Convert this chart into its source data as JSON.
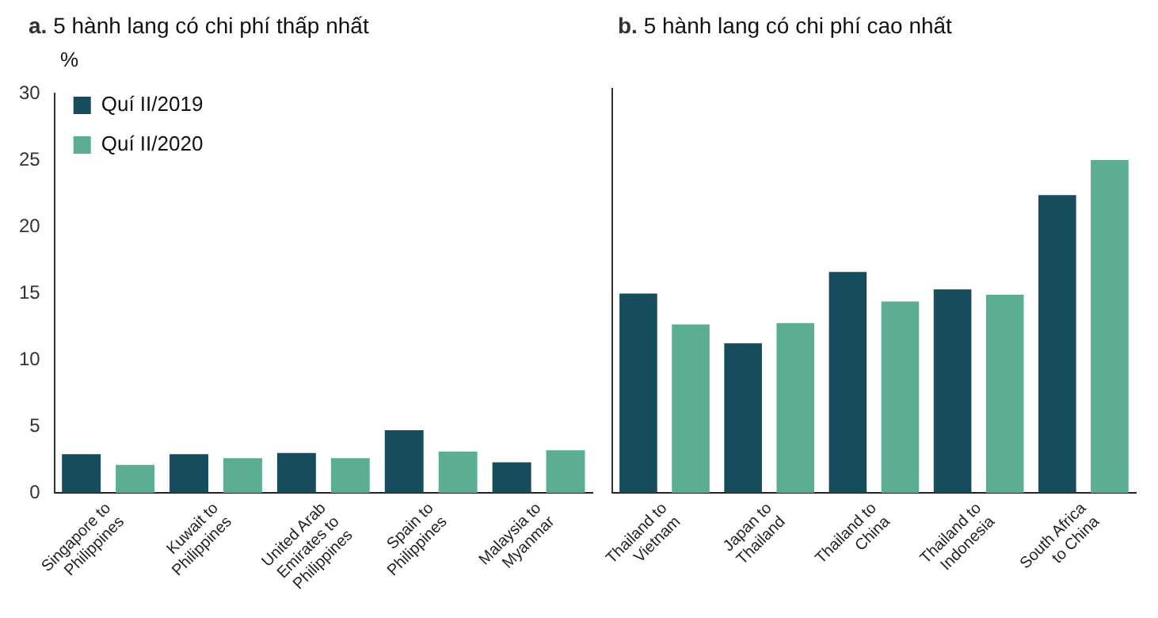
{
  "chart_data": [
    {
      "type": "bar",
      "title": "a. 5 hành lang có chi phí thấp nhất",
      "ylabel": "%",
      "categories": [
        "Singapore to Philippines",
        "Kuwait to Philippines",
        "United Arab Emirates to Philippines",
        "Spain to Philippines",
        "Malaysia to Myanmar"
      ],
      "series": [
        {
          "name": "Quí II/2019",
          "color": "#174c5e",
          "values": [
            2.9,
            2.9,
            3.0,
            4.7,
            2.3
          ]
        },
        {
          "name": "Quí II/2020",
          "color": "#5bae94",
          "values": [
            2.1,
            2.6,
            2.6,
            3.1,
            3.2
          ]
        }
      ],
      "ylim": [
        0,
        30
      ],
      "yticks": [
        0,
        5,
        10,
        15,
        20,
        25,
        30
      ],
      "grid": false,
      "legend": "top left"
    },
    {
      "type": "bar",
      "title": "b. 5 hành lang có chi phí cao nhất",
      "categories": [
        "Thailand to Vietnam",
        "Japan to Thailand",
        "Thailand to China",
        "Thailand to Indonesia",
        "South Africa to China"
      ],
      "series": [
        {
          "color": "#174c5e",
          "values": [
            14.8,
            11.1,
            16.4,
            15.1,
            22.1
          ]
        },
        {
          "color": "#5bae94",
          "values": [
            12.5,
            12.6,
            14.2,
            14.7,
            24.7
          ]
        }
      ],
      "ylim": [
        0,
        30
      ],
      "yticks": [
        0,
        5,
        10,
        15,
        20,
        25,
        30
      ],
      "grid": false,
      "tick_labels": "x"
    }
  ]
}
